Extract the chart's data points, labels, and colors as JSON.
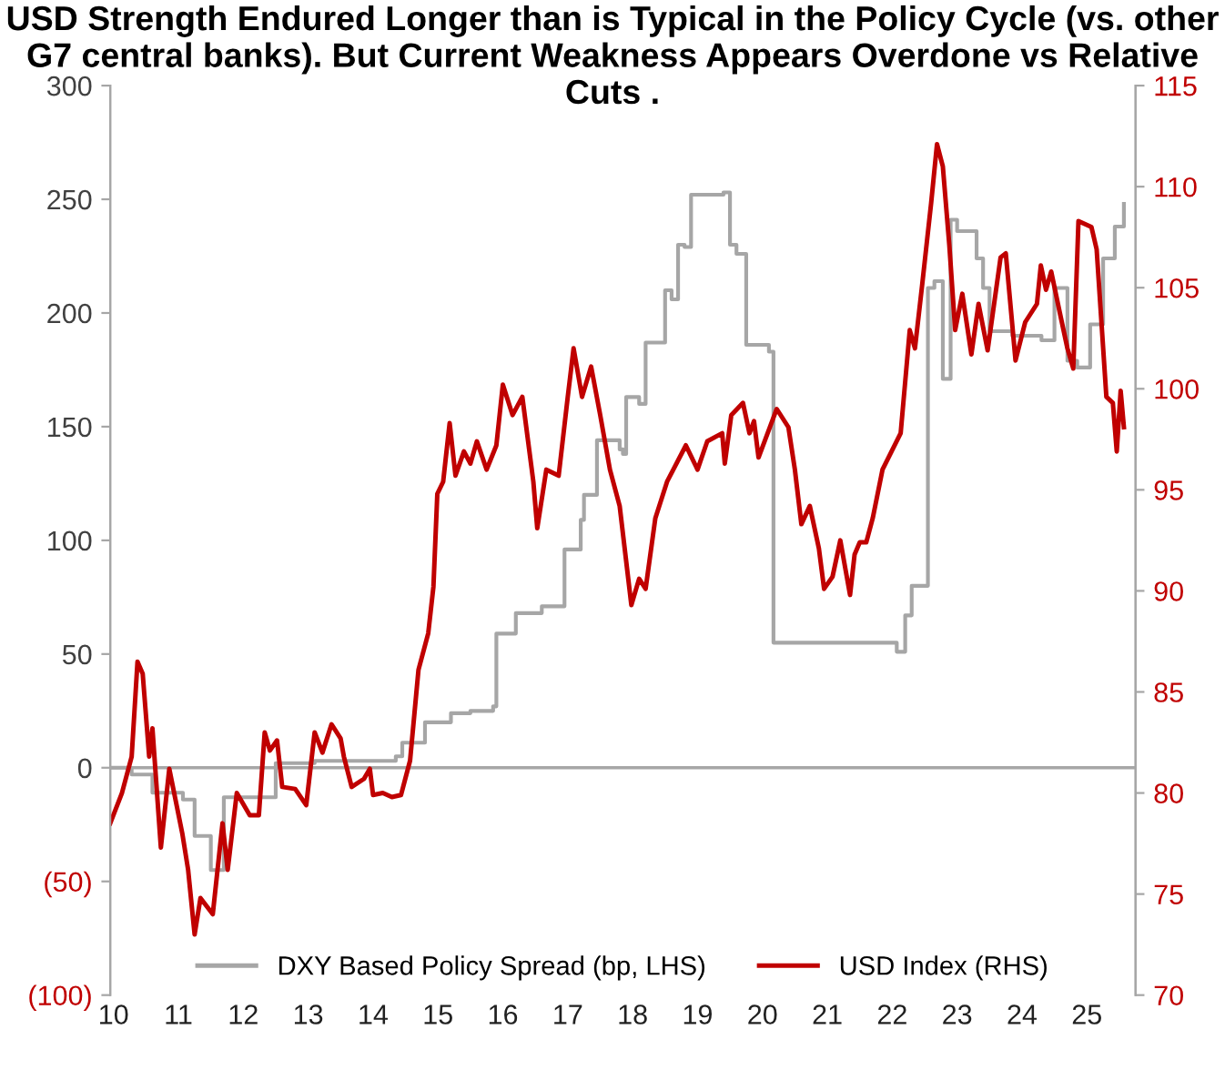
{
  "chart_data": {
    "type": "line",
    "title": "USD Strength Endured Longer than is Typical in the Policy Cycle (vs. other G7 central banks). But Current Weakness Appears Overdone vs Relative Cuts .",
    "series": [
      {
        "name": "DXY Based Policy Spread (bp, LHS)",
        "color": "#a6a6a6",
        "type": "step",
        "x": [
          9.95,
          10.28,
          10.6,
          11.07,
          11.25,
          11.5,
          11.6,
          11.7,
          12.4,
          12.5,
          13.1,
          14.35,
          14.45,
          14.8,
          15.2,
          15.5,
          15.85,
          15.9,
          16.2,
          16.5,
          16.6,
          16.85,
          16.95,
          17.1,
          17.2,
          17.25,
          17.45,
          17.8,
          17.85,
          17.9,
          18.1,
          18.2,
          18.45,
          18.5,
          18.6,
          18.7,
          18.8,
          18.9,
          19.4,
          19.5,
          19.6,
          19.75,
          20.1,
          20.17,
          21.9,
          22.07,
          22.2,
          22.3,
          22.55,
          22.65,
          22.78,
          22.9,
          23.0,
          23.3,
          23.4,
          23.5,
          23.85,
          24.3,
          24.5,
          24.7,
          24.85,
          25.05,
          25.25,
          25.43,
          25.57
        ],
        "values": [
          0,
          -3,
          -11,
          -14,
          -30,
          -45,
          -45,
          -13,
          -13,
          2,
          3,
          5,
          11,
          20,
          24,
          25,
          27,
          59,
          68,
          68,
          71,
          71,
          96,
          96,
          109,
          120,
          144,
          140,
          138,
          163,
          160,
          187,
          187,
          210,
          206,
          230,
          229,
          252,
          253,
          230,
          226,
          186,
          183,
          55,
          55,
          51,
          67,
          80,
          211,
          214,
          171,
          241,
          236,
          224,
          211,
          192,
          190,
          188,
          211,
          179,
          176,
          195,
          224,
          238,
          248
        ]
      },
      {
        "name": "USD Index (RHS)",
        "color": "#c00000",
        "axis": "y2",
        "x": [
          9.95,
          10.13,
          10.28,
          10.37,
          10.45,
          10.55,
          10.6,
          10.73,
          10.86,
          11.06,
          11.15,
          11.25,
          11.34,
          11.53,
          11.68,
          11.76,
          11.9,
          12.1,
          12.24,
          12.33,
          12.41,
          12.52,
          12.6,
          12.8,
          12.97,
          13.1,
          13.22,
          13.36,
          13.5,
          13.55,
          13.67,
          13.86,
          13.95,
          14.0,
          14.15,
          14.29,
          14.43,
          14.57,
          14.7,
          14.85,
          14.93,
          14.99,
          15.08,
          15.18,
          15.27,
          15.4,
          15.5,
          15.6,
          15.75,
          15.9,
          16.0,
          16.15,
          16.3,
          16.47,
          16.53,
          16.67,
          16.86,
          17.0,
          17.09,
          17.22,
          17.36,
          17.5,
          17.65,
          17.8,
          17.98,
          18.1,
          18.2,
          18.35,
          18.53,
          18.82,
          19.0,
          19.15,
          19.38,
          19.42,
          19.52,
          19.7,
          19.8,
          19.87,
          19.94,
          20.22,
          20.4,
          20.5,
          20.6,
          20.73,
          20.87,
          20.95,
          21.08,
          21.2,
          21.35,
          21.42,
          21.5,
          21.6,
          21.7,
          21.85,
          21.99,
          22.13,
          22.27,
          22.35,
          22.46,
          22.6,
          22.69,
          22.78,
          22.88,
          22.97,
          23.08,
          23.22,
          23.33,
          23.47,
          23.67,
          23.75,
          23.9,
          24.05,
          24.23,
          24.29,
          24.37,
          24.45,
          24.58,
          24.7,
          24.79,
          24.87,
          25.07,
          25.15,
          25.3,
          25.4,
          25.46,
          25.52,
          25.57
        ],
        "values": [
          78.5,
          80.0,
          81.8,
          86.5,
          85.9,
          81.8,
          83.2,
          77.3,
          81.2,
          78.0,
          76.2,
          73.0,
          74.8,
          74.0,
          78.5,
          76.2,
          80.0,
          78.9,
          78.9,
          83.0,
          82.1,
          82.6,
          80.3,
          80.2,
          79.4,
          83.0,
          82.0,
          83.4,
          82.7,
          81.8,
          80.3,
          80.7,
          81.2,
          79.9,
          80.0,
          79.8,
          79.9,
          81.6,
          86.1,
          87.9,
          90.2,
          94.8,
          95.4,
          98.3,
          95.7,
          96.9,
          96.3,
          97.4,
          96.0,
          97.2,
          100.2,
          98.7,
          99.6,
          95.4,
          93.1,
          96.0,
          95.7,
          99.6,
          102.0,
          99.6,
          101.1,
          98.7,
          96.0,
          94.2,
          89.3,
          90.6,
          90.1,
          93.6,
          95.4,
          97.2,
          96.0,
          97.4,
          97.8,
          96.3,
          98.7,
          99.3,
          97.8,
          98.4,
          96.6,
          99.0,
          98.1,
          96.0,
          93.3,
          94.2,
          92.1,
          90.1,
          90.7,
          92.5,
          89.8,
          91.8,
          92.4,
          92.4,
          93.6,
          96.0,
          96.9,
          97.8,
          102.9,
          102.0,
          105.1,
          109.2,
          112.1,
          111.0,
          107.1,
          102.9,
          104.7,
          101.7,
          104.2,
          101.9,
          106.5,
          106.7,
          101.4,
          103.3,
          104.2,
          106.1,
          104.9,
          105.8,
          103.8,
          102.0,
          101.0,
          108.3,
          108.0,
          106.9,
          99.6,
          99.3,
          96.9,
          99.9,
          98.1
        ]
      }
    ],
    "xlim": [
      9.95,
      25.75
    ],
    "xticks": [
      10,
      11,
      12,
      13,
      14,
      15,
      16,
      17,
      18,
      19,
      20,
      21,
      22,
      23,
      24,
      25
    ],
    "ylim": [
      -100,
      300
    ],
    "yticks": [
      {
        "value": -100,
        "label": "(100)"
      },
      {
        "value": -50,
        "label": "(50)"
      },
      0,
      50,
      100,
      150,
      200,
      250,
      300
    ],
    "y2lim": [
      70,
      115
    ],
    "y2ticks": [
      70,
      75,
      80,
      85,
      90,
      95,
      100,
      105,
      110,
      115
    ],
    "ref_lines": [
      {
        "axis": "y",
        "value": 0,
        "color": "#a6a6a6"
      }
    ],
    "legend": "bottom",
    "grid": false
  }
}
